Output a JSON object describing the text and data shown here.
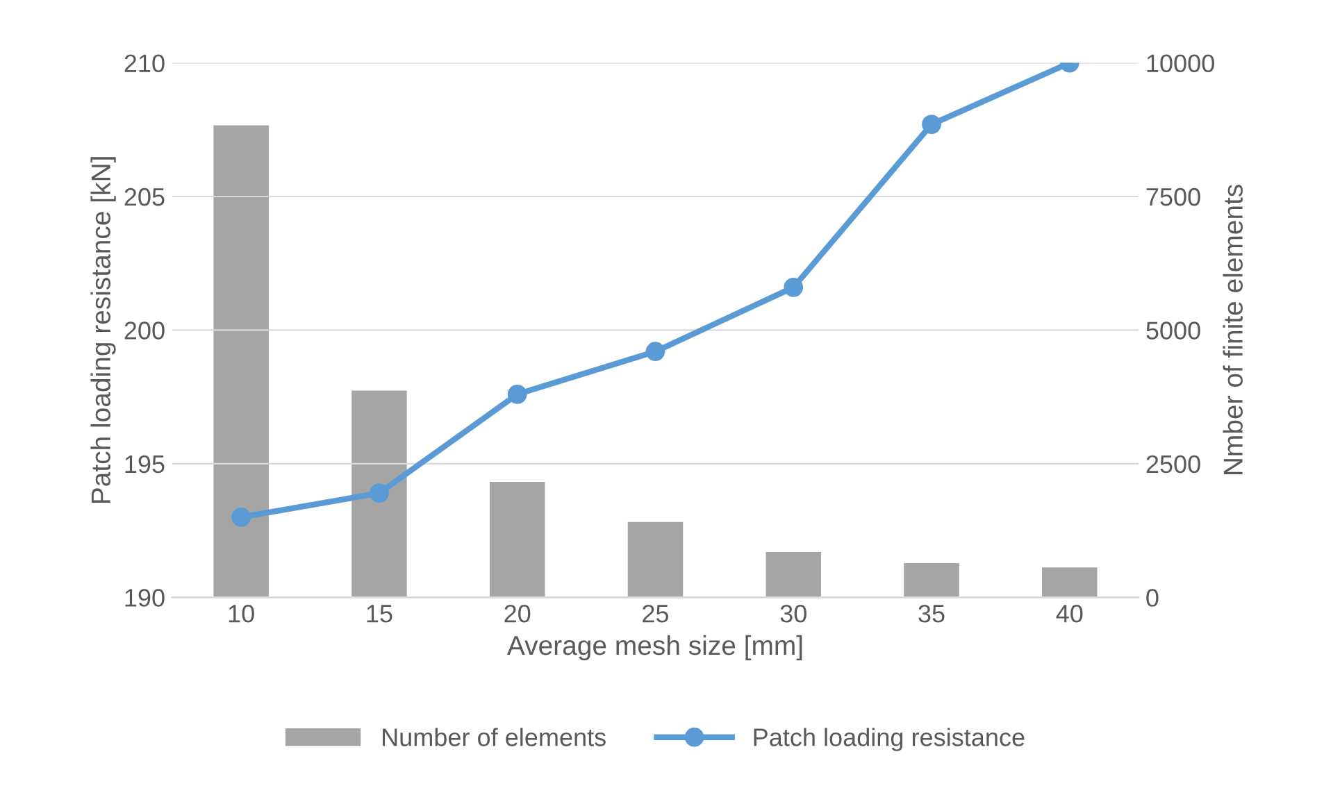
{
  "chart_data": {
    "type": "bar",
    "xlabel": "Average mesh size [mm]",
    "ylabel": "Patch loading resistance [kN]",
    "y2label": "Nmber of finite elements",
    "categories": [
      "10",
      "15",
      "20",
      "25",
      "30",
      "35",
      "40"
    ],
    "series": [
      {
        "name": "Number of elements",
        "axis": "y2",
        "color": "#a5a5a5",
        "values": [
          8830,
          3870,
          2160,
          1410,
          850,
          640,
          560
        ]
      },
      {
        "name": "Patch loading resistance",
        "type": "line",
        "color": "#5b9bd5",
        "marker": "circle",
        "values": [
          193.0,
          193.9,
          197.6,
          199.2,
          201.6,
          207.7,
          210.0
        ]
      }
    ],
    "ylim": [
      190,
      210
    ],
    "yticks": [
      190,
      195,
      200,
      205,
      210
    ],
    "y2lim": [
      0,
      10000
    ],
    "y2ticks": [
      0,
      2500,
      5000,
      7500,
      10000
    ],
    "grid": "y",
    "legend": "bottom"
  }
}
